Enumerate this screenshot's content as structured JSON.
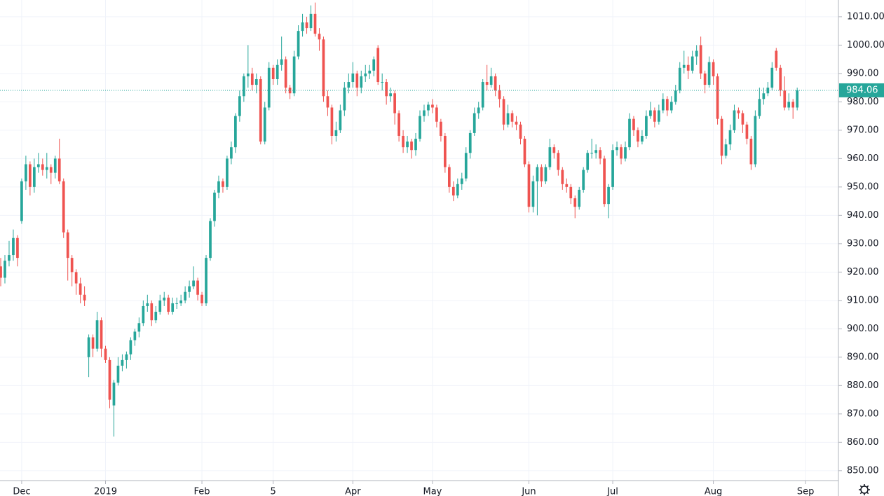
{
  "chart_data": {
    "type": "candlestick",
    "up_color": "#26a69a",
    "down_color": "#ef5350",
    "grid": true,
    "xlim": [
      -0.17,
      199.67
    ],
    "xticks": [
      {
        "value": 5,
        "label": "Dec"
      },
      {
        "value": 25,
        "label": "2019"
      },
      {
        "value": 48,
        "label": "Feb"
      },
      {
        "value": 65,
        "label": "5"
      },
      {
        "value": 84,
        "label": "Apr"
      },
      {
        "value": 103,
        "label": "May"
      },
      {
        "value": 126,
        "label": "Jun"
      },
      {
        "value": 146,
        "label": "Jul"
      },
      {
        "value": 170,
        "label": "Aug"
      },
      {
        "value": 192,
        "label": "Sep"
      }
    ],
    "ylim": [
      846.5,
      1015.9
    ],
    "yticks": [
      {
        "value": 850,
        "label": "850.00"
      },
      {
        "value": 860,
        "label": "860.00"
      },
      {
        "value": 870,
        "label": "870.00"
      },
      {
        "value": 880,
        "label": "880.00"
      },
      {
        "value": 890,
        "label": "890.00"
      },
      {
        "value": 900,
        "label": "900.00"
      },
      {
        "value": 910,
        "label": "910.00"
      },
      {
        "value": 920,
        "label": "920.00"
      },
      {
        "value": 930,
        "label": "930.00"
      },
      {
        "value": 940,
        "label": "940.00"
      },
      {
        "value": 950,
        "label": "950.00"
      },
      {
        "value": 960,
        "label": "960.00"
      },
      {
        "value": 970,
        "label": "970.00"
      },
      {
        "value": 980,
        "label": "980.00"
      },
      {
        "value": 990,
        "label": "990.00"
      },
      {
        "value": 1000,
        "label": "1000.00"
      },
      {
        "value": 1010,
        "label": "1010.00"
      }
    ],
    "last_price": 984.06,
    "ohlc": [
      [
        922,
        925,
        915,
        918
      ],
      [
        918,
        926,
        916,
        924
      ],
      [
        924,
        931,
        922,
        926
      ],
      [
        926,
        935,
        924,
        932
      ],
      [
        932,
        933,
        922,
        925
      ],
      [
        938,
        953,
        937,
        952
      ],
      [
        952,
        961,
        949,
        958
      ],
      [
        958,
        959,
        947,
        950
      ],
      [
        950,
        960,
        948,
        957
      ],
      [
        957,
        962,
        955,
        958
      ],
      [
        958,
        960,
        954,
        956
      ],
      [
        956,
        962,
        953,
        957
      ],
      [
        957,
        958,
        951,
        955
      ],
      [
        955,
        961,
        953,
        960
      ],
      [
        960,
        967,
        951,
        952
      ],
      [
        952,
        953,
        932,
        934
      ],
      [
        934,
        935,
        917,
        925
      ],
      [
        925,
        926,
        915,
        920
      ],
      [
        920,
        921,
        912,
        916
      ],
      [
        916,
        918,
        909,
        912
      ],
      [
        912,
        915,
        908,
        910
      ],
      [
        890,
        898,
        883,
        897
      ],
      [
        897,
        898,
        890,
        893
      ],
      [
        893,
        906,
        892,
        903
      ],
      [
        903,
        904,
        890,
        893
      ],
      [
        893,
        894,
        888,
        889
      ],
      [
        889,
        890,
        872,
        875
      ],
      [
        873,
        882,
        862,
        881
      ],
      [
        881,
        890,
        880,
        887
      ],
      [
        887,
        891,
        885,
        889
      ],
      [
        889,
        892,
        886,
        891
      ],
      [
        891,
        897,
        889,
        896
      ],
      [
        896,
        900,
        894,
        899
      ],
      [
        899,
        904,
        897,
        902
      ],
      [
        902,
        910,
        901,
        908
      ],
      [
        908,
        912,
        906,
        909
      ],
      [
        909,
        910,
        901,
        903
      ],
      [
        903,
        908,
        902,
        906
      ],
      [
        906,
        912,
        905,
        910
      ],
      [
        910,
        913,
        908,
        911
      ],
      [
        911,
        912,
        905,
        906
      ],
      [
        906,
        911,
        905,
        909
      ],
      [
        909,
        911,
        907,
        909
      ],
      [
        909,
        912,
        908,
        910
      ],
      [
        910,
        915,
        909,
        913
      ],
      [
        913,
        917,
        911,
        915
      ],
      [
        915,
        922,
        914,
        917
      ],
      [
        917,
        918,
        910,
        912
      ],
      [
        912,
        913,
        908,
        909
      ],
      [
        909,
        926,
        908,
        925
      ],
      [
        925,
        939,
        924,
        938
      ],
      [
        938,
        949,
        936,
        948
      ],
      [
        948,
        954,
        946,
        952
      ],
      [
        952,
        953,
        948,
        950
      ],
      [
        950,
        961,
        949,
        960
      ],
      [
        960,
        966,
        958,
        964
      ],
      [
        964,
        976,
        962,
        975
      ],
      [
        975,
        984,
        973,
        982
      ],
      [
        982,
        990,
        980,
        989
      ],
      [
        989,
        1000,
        985,
        990
      ],
      [
        990,
        992,
        984,
        986
      ],
      [
        986,
        990,
        983,
        988
      ],
      [
        988,
        989,
        965,
        966
      ],
      [
        966,
        980,
        965,
        978
      ],
      [
        978,
        994,
        977,
        992
      ],
      [
        992,
        993,
        986,
        988
      ],
      [
        988,
        995,
        986,
        993
      ],
      [
        993,
        1003,
        991,
        995
      ],
      [
        995,
        996,
        983,
        985
      ],
      [
        985,
        986,
        981,
        983
      ],
      [
        983,
        998,
        982,
        996
      ],
      [
        996,
        1007,
        995,
        1005
      ],
      [
        1005,
        1011,
        1003,
        1008
      ],
      [
        1008,
        1010,
        1004,
        1006
      ],
      [
        1006,
        1014,
        1005,
        1011
      ],
      [
        1011,
        1015,
        1003,
        1004
      ],
      [
        1004,
        1006,
        998,
        1002
      ],
      [
        1002,
        1003,
        980,
        982
      ],
      [
        982,
        984,
        975,
        978
      ],
      [
        978,
        979,
        965,
        968
      ],
      [
        968,
        973,
        966,
        970
      ],
      [
        970,
        979,
        969,
        977
      ],
      [
        977,
        987,
        975,
        985
      ],
      [
        985,
        990,
        983,
        987
      ],
      [
        987,
        994,
        985,
        990
      ],
      [
        990,
        991,
        982,
        985
      ],
      [
        985,
        991,
        983,
        989
      ],
      [
        989,
        993,
        987,
        990
      ],
      [
        990,
        993,
        988,
        991
      ],
      [
        991,
        996,
        989,
        995
      ],
      [
        999,
        1000,
        986,
        987
      ],
      [
        987,
        990,
        984,
        987
      ],
      [
        987,
        988,
        979,
        982
      ],
      [
        982,
        985,
        980,
        983
      ],
      [
        983,
        984,
        972,
        976
      ],
      [
        976,
        977,
        966,
        968
      ],
      [
        968,
        970,
        962,
        964
      ],
      [
        964,
        968,
        962,
        966
      ],
      [
        966,
        967,
        960,
        963
      ],
      [
        963,
        969,
        961,
        967
      ],
      [
        967,
        977,
        966,
        975
      ],
      [
        975,
        979,
        973,
        977
      ],
      [
        977,
        980,
        975,
        979
      ],
      [
        979,
        981,
        976,
        978
      ],
      [
        978,
        979,
        971,
        973
      ],
      [
        973,
        974,
        966,
        968
      ],
      [
        968,
        969,
        955,
        957
      ],
      [
        957,
        958,
        948,
        950
      ],
      [
        950,
        952,
        945,
        947
      ],
      [
        947,
        953,
        946,
        951
      ],
      [
        951,
        955,
        949,
        953
      ],
      [
        953,
        964,
        952,
        962
      ],
      [
        962,
        970,
        960,
        969
      ],
      [
        969,
        978,
        968,
        976
      ],
      [
        976,
        980,
        974,
        978
      ],
      [
        978,
        988,
        977,
        987
      ],
      [
        987,
        993,
        984,
        986
      ],
      [
        986,
        992,
        985,
        989
      ],
      [
        989,
        990,
        982,
        984
      ],
      [
        984,
        986,
        978,
        981
      ],
      [
        981,
        982,
        970,
        972
      ],
      [
        972,
        979,
        971,
        976
      ],
      [
        976,
        977,
        971,
        973
      ],
      [
        973,
        975,
        970,
        972
      ],
      [
        972,
        973,
        965,
        967
      ],
      [
        967,
        968,
        957,
        958
      ],
      [
        958,
        959,
        941,
        943
      ],
      [
        943,
        954,
        941,
        952
      ],
      [
        952,
        958,
        940,
        957
      ],
      [
        957,
        958,
        950,
        952
      ],
      [
        952,
        958,
        951,
        957
      ],
      [
        957,
        967,
        956,
        964
      ],
      [
        964,
        965,
        960,
        962
      ],
      [
        962,
        963,
        954,
        956
      ],
      [
        956,
        957,
        949,
        951
      ],
      [
        951,
        953,
        948,
        950
      ],
      [
        950,
        951,
        944,
        946
      ],
      [
        946,
        947,
        939,
        943
      ],
      [
        943,
        950,
        942,
        949
      ],
      [
        949,
        957,
        948,
        956
      ],
      [
        956,
        963,
        955,
        962
      ],
      [
        962,
        967,
        960,
        962
      ],
      [
        962,
        965,
        960,
        963
      ],
      [
        963,
        964,
        958,
        960
      ],
      [
        960,
        961,
        943,
        944
      ],
      [
        944,
        951,
        939,
        950
      ],
      [
        950,
        965,
        949,
        963
      ],
      [
        963,
        966,
        961,
        964
      ],
      [
        964,
        965,
        958,
        960
      ],
      [
        960,
        966,
        959,
        964
      ],
      [
        964,
        976,
        963,
        974
      ],
      [
        974,
        975,
        968,
        970
      ],
      [
        970,
        971,
        964,
        966
      ],
      [
        966,
        970,
        965,
        968
      ],
      [
        968,
        977,
        967,
        975
      ],
      [
        975,
        980,
        974,
        977
      ],
      [
        977,
        978,
        971,
        973
      ],
      [
        973,
        979,
        972,
        977
      ],
      [
        977,
        983,
        976,
        981
      ],
      [
        981,
        982,
        975,
        977
      ],
      [
        977,
        982,
        976,
        980
      ],
      [
        980,
        986,
        979,
        984
      ],
      [
        984,
        994,
        983,
        992
      ],
      [
        992,
        998,
        990,
        993
      ],
      [
        993,
        996,
        988,
        991
      ],
      [
        991,
        998,
        990,
        996
      ],
      [
        996,
        1000,
        993,
        998
      ],
      [
        1000,
        1003,
        988,
        990
      ],
      [
        990,
        991,
        983,
        986
      ],
      [
        986,
        996,
        985,
        994
      ],
      [
        994,
        995,
        986,
        989
      ],
      [
        989,
        990,
        972,
        974
      ],
      [
        974,
        975,
        958,
        961
      ],
      [
        961,
        967,
        960,
        965
      ],
      [
        965,
        972,
        963,
        970
      ],
      [
        970,
        979,
        969,
        977
      ],
      [
        977,
        978,
        974,
        976
      ],
      [
        976,
        977,
        969,
        972
      ],
      [
        972,
        973,
        965,
        967
      ],
      [
        967,
        968,
        956,
        958
      ],
      [
        958,
        977,
        957,
        975
      ],
      [
        975,
        985,
        974,
        981
      ],
      [
        981,
        985,
        979,
        983
      ],
      [
        983,
        987,
        982,
        985
      ],
      [
        985,
        994,
        984,
        992
      ],
      [
        998,
        999,
        991,
        992
      ],
      [
        992,
        993,
        982,
        984
      ],
      [
        984,
        989,
        977,
        978
      ],
      [
        978,
        983,
        977,
        980
      ],
      [
        980,
        981,
        974,
        978
      ],
      [
        978,
        985,
        977,
        984.06
      ]
    ]
  }
}
